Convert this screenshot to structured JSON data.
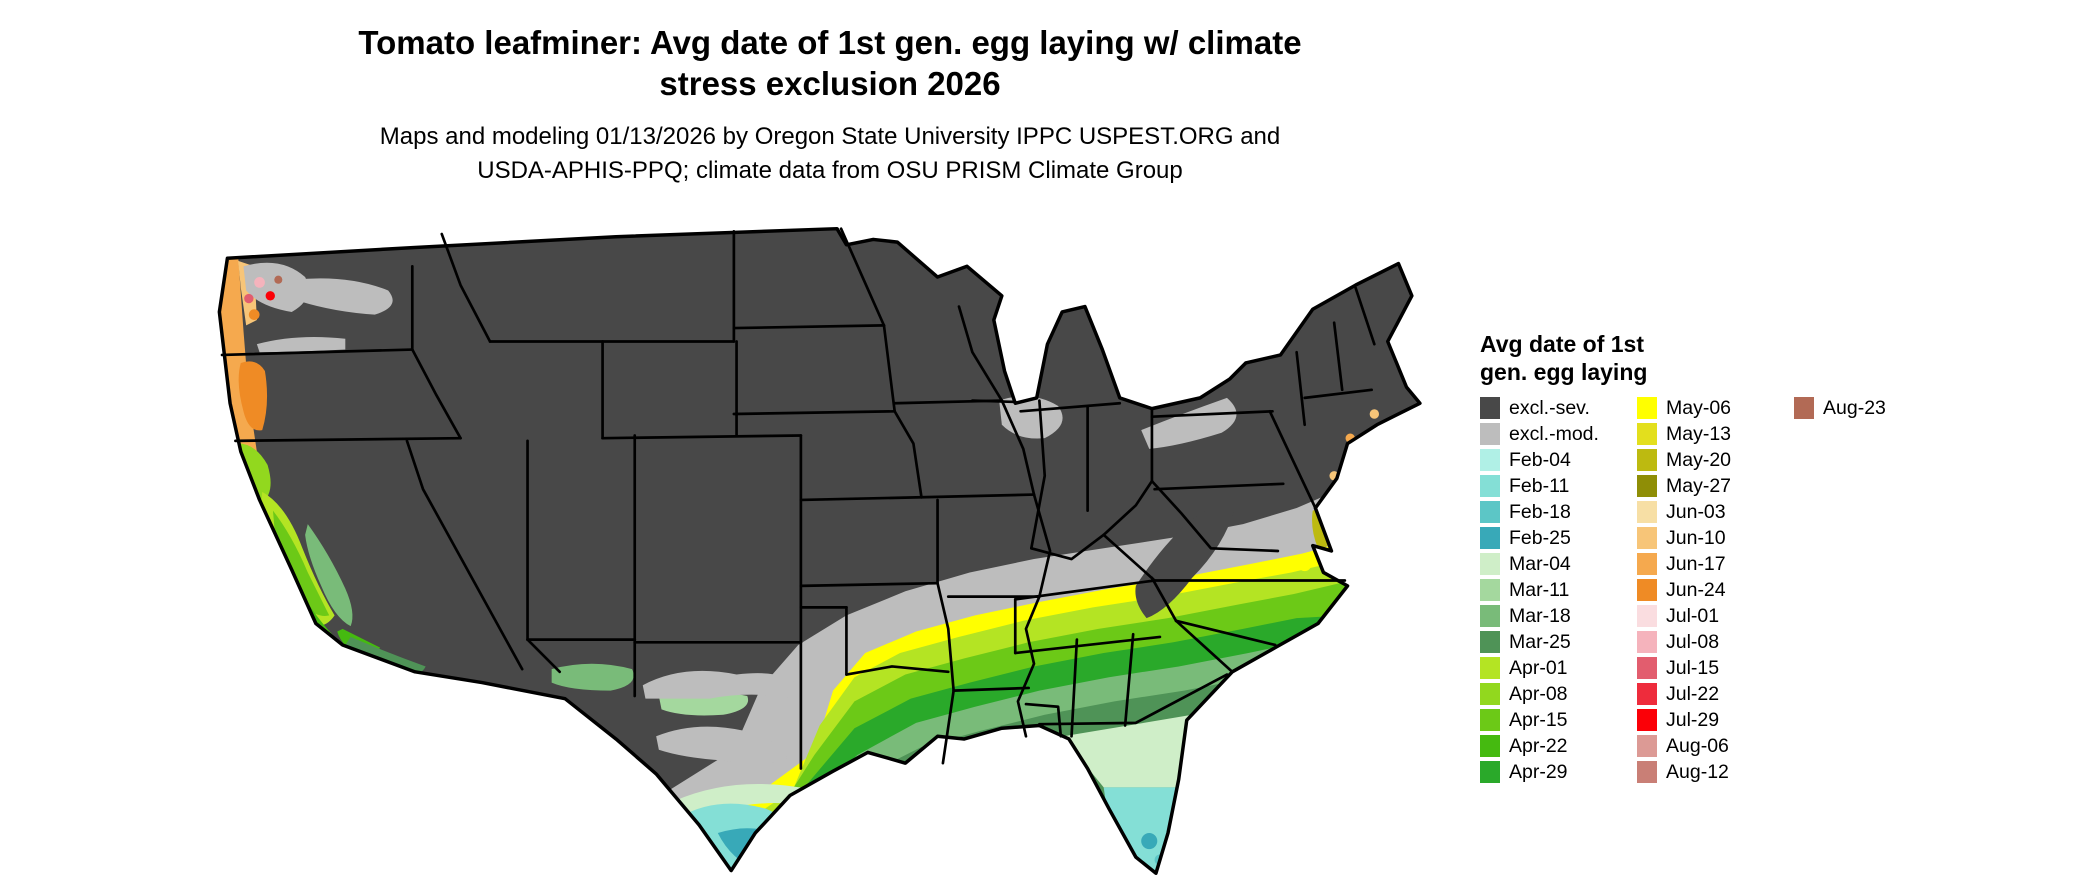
{
  "title_lines": [
    "Tomato leafminer: Avg date of 1st gen. egg laying w/ climate",
    "stress exclusion 2026"
  ],
  "subtitle_lines": [
    "Maps and modeling 01/13/2026 by Oregon State University IPPC USPEST.ORG and",
    "USDA-APHIS-PPQ; climate data from OSU PRISM Climate Group"
  ],
  "colors": {
    "excl_sev": "#484848",
    "excl_mod": "#bdbdbd",
    "feb04": "#b0f0e6",
    "feb11": "#84dfd6",
    "feb18": "#5cc6c6",
    "feb25": "#38a9b8",
    "mar04": "#cfeec8",
    "mar11": "#a4d89e",
    "mar18": "#79bb79",
    "mar25": "#4f9357",
    "apr01": "#b4e423",
    "apr08": "#92d81e",
    "apr15": "#6cc917",
    "apr22": "#45ba10",
    "apr29": "#2aa92a",
    "may06": "#ffff00",
    "may13": "#e3df1d",
    "may20": "#bdba10",
    "may27": "#8f8e06",
    "jun03": "#f7dfa5",
    "jun10": "#f7c578",
    "jun17": "#f5a94e",
    "jun24": "#ef8b25",
    "jul01": "#fadde0",
    "jul08": "#f5b3bc",
    "jul15": "#e25d6e",
    "jul22": "#ee2c3c",
    "jul29": "#fb0007",
    "aug06": "#dc9a95",
    "aug12": "#c97f76",
    "aug23": "#b26a55"
  },
  "legend": {
    "title": "Avg date of 1st\ngen. egg laying",
    "columns": [
      {
        "entries": [
          {
            "label": "excl.-sev.",
            "color": "excl_sev"
          },
          {
            "label": "excl.-mod.",
            "color": "excl_mod"
          },
          {
            "label": "Feb-04",
            "color": "feb04"
          },
          {
            "label": "Feb-11",
            "color": "feb11"
          },
          {
            "label": "Feb-18",
            "color": "feb18"
          },
          {
            "label": "Feb-25",
            "color": "feb25"
          },
          {
            "label": "Mar-04",
            "color": "mar04"
          },
          {
            "label": "Mar-11",
            "color": "mar11"
          },
          {
            "label": "Mar-18",
            "color": "mar18"
          },
          {
            "label": "Mar-25",
            "color": "mar25"
          },
          {
            "label": "Apr-01",
            "color": "apr01"
          },
          {
            "label": "Apr-08",
            "color": "apr08"
          },
          {
            "label": "Apr-15",
            "color": "apr15"
          },
          {
            "label": "Apr-22",
            "color": "apr22"
          },
          {
            "label": "Apr-29",
            "color": "apr29"
          }
        ]
      },
      {
        "entries": [
          {
            "label": "May-06",
            "color": "may06"
          },
          {
            "label": "May-13",
            "color": "may13"
          },
          {
            "label": "May-20",
            "color": "may20"
          },
          {
            "label": "May-27",
            "color": "may27"
          },
          {
            "label": "Jun-03",
            "color": "jun03"
          },
          {
            "label": "Jun-10",
            "color": "jun10"
          },
          {
            "label": "Jun-17",
            "color": "jun17"
          },
          {
            "label": "Jun-24",
            "color": "jun24"
          },
          {
            "label": "Jul-01",
            "color": "jul01"
          },
          {
            "label": "Jul-08",
            "color": "jul08"
          },
          {
            "label": "Jul-15",
            "color": "jul15"
          },
          {
            "label": "Jul-22",
            "color": "jul22"
          },
          {
            "label": "Jul-29",
            "color": "jul29"
          },
          {
            "label": "Aug-06",
            "color": "aug06"
          },
          {
            "label": "Aug-12",
            "color": "aug12"
          }
        ]
      },
      {
        "entries": [
          {
            "label": "Aug-23",
            "color": "aug23"
          }
        ]
      }
    ]
  }
}
